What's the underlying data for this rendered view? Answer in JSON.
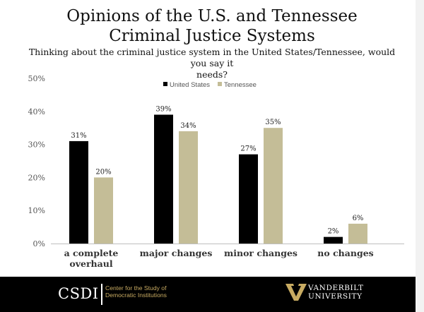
{
  "slide": {
    "title_line1": "Opinions of the U.S. and Tennessee",
    "title_line2": "Criminal Justice Systems",
    "subtitle_line1": "Thinking about the criminal justice system in the United States/Tennessee, would you say it",
    "subtitle_line2": "needs?"
  },
  "chart_data": {
    "type": "bar",
    "categories": [
      [
        "a complete",
        "overhaul"
      ],
      [
        "major changes"
      ],
      [
        "minor changes"
      ],
      [
        "no changes"
      ]
    ],
    "series": [
      {
        "name": "United States",
        "values": [
          31,
          39,
          27,
          2
        ],
        "labels": [
          "31%",
          "39%",
          "27%",
          "2%"
        ],
        "color": "#000000"
      },
      {
        "name": "Tennessee",
        "values": [
          20,
          34,
          35,
          6
        ],
        "labels": [
          "20%",
          "34%",
          "35%",
          "6%"
        ],
        "color": "#c4bd97"
      }
    ],
    "ylim": [
      0,
      50
    ],
    "yticks": [
      0,
      10,
      20,
      30,
      40,
      50
    ],
    "ytick_labels": [
      "0%",
      "10%",
      "20%",
      "30%",
      "40%",
      "50%"
    ],
    "legend_position": "top-center",
    "grid": false,
    "title": "",
    "xlabel": "",
    "ylabel": ""
  },
  "footer": {
    "csdi_logo": "CSDI",
    "csdi_name_line1": "Center for the Study of",
    "csdi_name_line2": "Democratic Institutions",
    "vanderbilt_line1": "VANDERBILT",
    "vanderbilt_line2": "UNIVERSITY"
  },
  "colors": {
    "us": "#000000",
    "tn": "#c4bd97",
    "footer_bg": "#000000",
    "csdi_gold": "#c8ab62"
  }
}
